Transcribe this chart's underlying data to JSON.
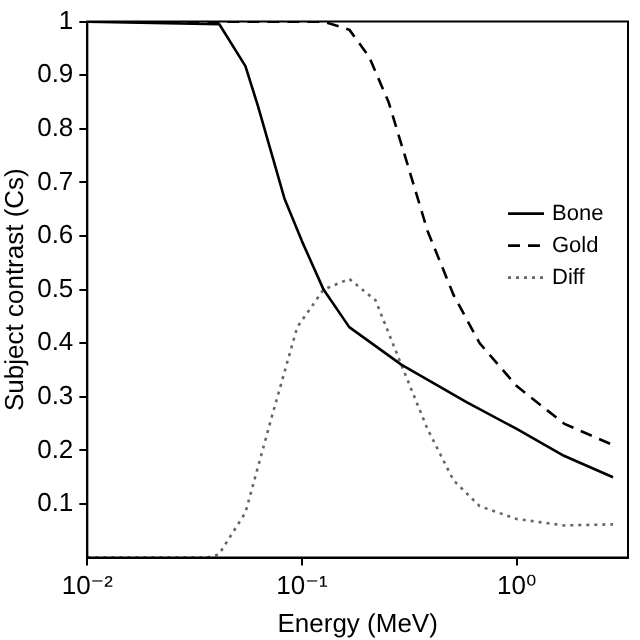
{
  "chart_data": {
    "type": "line",
    "xlabel": "Energy (MeV)",
    "ylabel": "Subject contrast (Cs)",
    "xlim": [
      0.01,
      3.3
    ],
    "xticks": [
      {
        "value": 0.01,
        "label": "10⁻²"
      },
      {
        "value": 0.1,
        "label": "10⁻¹"
      },
      {
        "value": 1,
        "label": "10⁰"
      }
    ],
    "ylim": [
      0,
      1
    ],
    "yticks": [
      0.1,
      0.2,
      0.3,
      0.4,
      0.5,
      0.6,
      0.7,
      0.8,
      0.9,
      1
    ],
    "log": "x",
    "grid": false,
    "legend": "right",
    "marker": "none",
    "series": [
      {
        "name": "Bone",
        "color": "#000000",
        "line_style": "solid",
        "x": [
          0.01,
          0.0412,
          0.0545,
          0.0626,
          0.072,
          0.0828,
          0.1,
          0.126,
          0.166,
          0.29,
          0.584,
          1,
          1.66,
          2.81
        ],
        "values": [
          1,
          0.995,
          0.917,
          0.84,
          0.755,
          0.67,
          0.59,
          0.5,
          0.43,
          0.36,
          0.29,
          0.24,
          0.19,
          0.15
        ]
      },
      {
        "name": "Gold",
        "color": "#000000",
        "line_style": "dashed",
        "x": [
          0.01,
          0.126,
          0.166,
          0.205,
          0.253,
          0.312,
          0.384,
          0.508,
          0.672,
          1,
          1.66,
          2.81
        ],
        "values": [
          1,
          1,
          0.985,
          0.935,
          0.85,
          0.73,
          0.61,
          0.49,
          0.4,
          0.32,
          0.25,
          0.21
        ]
      },
      {
        "name": "Diff",
        "color": "#666666",
        "line_style": "dotted",
        "x": [
          0.01,
          0.036,
          0.041,
          0.0545,
          0.072,
          0.095,
          0.126,
          0.166,
          0.22,
          0.29,
          0.384,
          0.508,
          0.672,
          1,
          1.66,
          2.81
        ],
        "values": [
          0,
          0,
          0.006,
          0.084,
          0.26,
          0.43,
          0.5,
          0.52,
          0.48,
          0.36,
          0.24,
          0.144,
          0.096,
          0.072,
          0.06,
          0.062
        ]
      }
    ]
  }
}
